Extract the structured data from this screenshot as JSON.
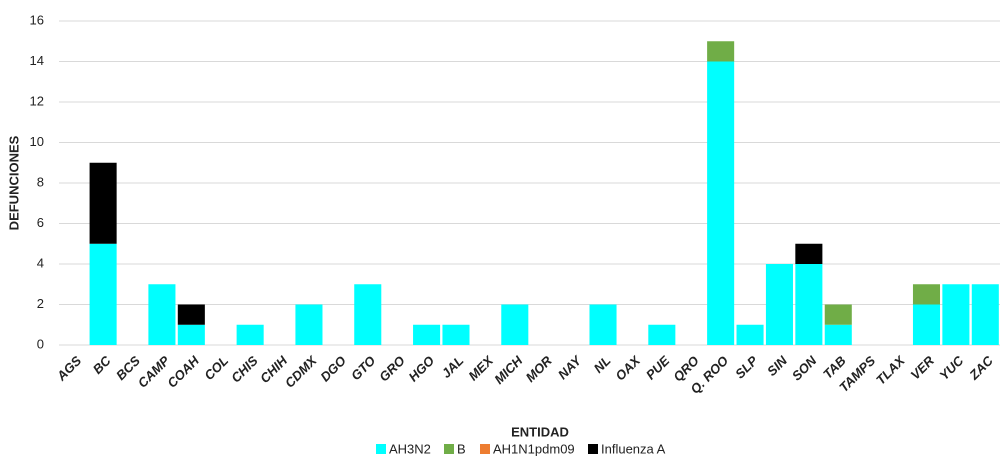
{
  "chart_data": {
    "type": "stacked_bar",
    "x_label": "ENTIDAD",
    "y_label": "DEFUNCIONES",
    "categories": [
      "AGS",
      "BC",
      "BCS",
      "CAMP",
      "COAH",
      "COL",
      "CHIS",
      "CHIH",
      "CDMX",
      "DGO",
      "GTO",
      "GRO",
      "HGO",
      "JAL",
      "MEX",
      "MICH",
      "MOR",
      "NAY",
      "NL",
      "OAX",
      "PUE",
      "QRO",
      "Q. ROO",
      "SLP",
      "SIN",
      "SON",
      "TAB",
      "TAMPS",
      "TLAX",
      "VER",
      "YUC",
      "ZAC"
    ],
    "series": [
      {
        "name": "AH3N2",
        "color": "#00ffff",
        "values": [
          0,
          5,
          0,
          3,
          1,
          0,
          1,
          0,
          2,
          0,
          3,
          0,
          1,
          1,
          0,
          2,
          0,
          0,
          2,
          0,
          1,
          0,
          14,
          1,
          4,
          4,
          1,
          0,
          0,
          2,
          3,
          3
        ]
      },
      {
        "name": "B",
        "color": "#70ad47",
        "values": [
          0,
          0,
          0,
          0,
          0,
          0,
          0,
          0,
          0,
          0,
          0,
          0,
          0,
          0,
          0,
          0,
          0,
          0,
          0,
          0,
          0,
          0,
          1,
          0,
          0,
          0,
          1,
          0,
          0,
          1,
          0,
          0
        ]
      },
      {
        "name": "AH1N1pdm09",
        "color": "#ed7d31",
        "values": [
          0,
          0,
          0,
          0,
          0,
          0,
          0,
          0,
          0,
          0,
          0,
          0,
          0,
          0,
          0,
          0,
          0,
          0,
          0,
          0,
          0,
          0,
          0,
          0,
          0,
          0,
          0,
          0,
          0,
          0,
          0,
          0
        ]
      },
      {
        "name": "Influenza A",
        "color": "#000000",
        "values": [
          0,
          4,
          0,
          0,
          1,
          0,
          0,
          0,
          0,
          0,
          0,
          0,
          0,
          0,
          0,
          0,
          0,
          0,
          0,
          0,
          0,
          0,
          0,
          0,
          0,
          1,
          0,
          0,
          0,
          0,
          0,
          0
        ]
      }
    ],
    "ylim": [
      0,
      16
    ],
    "yticks": [
      0,
      2,
      4,
      6,
      8,
      10,
      12,
      14,
      16
    ],
    "grid": true,
    "legend": "bottom"
  }
}
